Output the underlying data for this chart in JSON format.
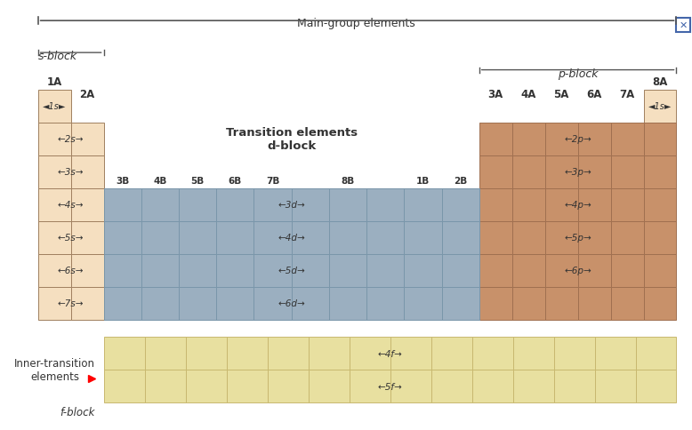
{
  "fig_width": 7.78,
  "fig_height": 4.85,
  "bg_color": "#ffffff",
  "s_block_color": "#f5dfc0",
  "p_block_color": "#c8916a",
  "d_block_color": "#9bafc0",
  "f_block_color": "#e8e0a0",
  "grid_line_color": "#a08060",
  "d_grid_line_color": "#7a96aa",
  "f_grid_line_color": "#c8b870",
  "p_grid_line_color": "#a07050",
  "title_top": "Main-group elements",
  "s_block_label": "s-block",
  "p_block_label": "p-block",
  "d_block_label": "Transition elements\nd-block",
  "f_block_label": "Inner-transition\nelements",
  "f_block_label2": "f-block",
  "col_1A": "1A",
  "col_2A": "2A",
  "col_3A": "3A",
  "col_4A": "4A",
  "col_5A": "5A",
  "col_6A": "6A",
  "col_7A": "7A",
  "col_8A": "8A",
  "d_cols": [
    "3B",
    "4B",
    "5B",
    "6B",
    "7B",
    "8B",
    "1B",
    "2B"
  ],
  "arrow_color": "#333333",
  "text_color": "#333333",
  "label_color": "#555555"
}
